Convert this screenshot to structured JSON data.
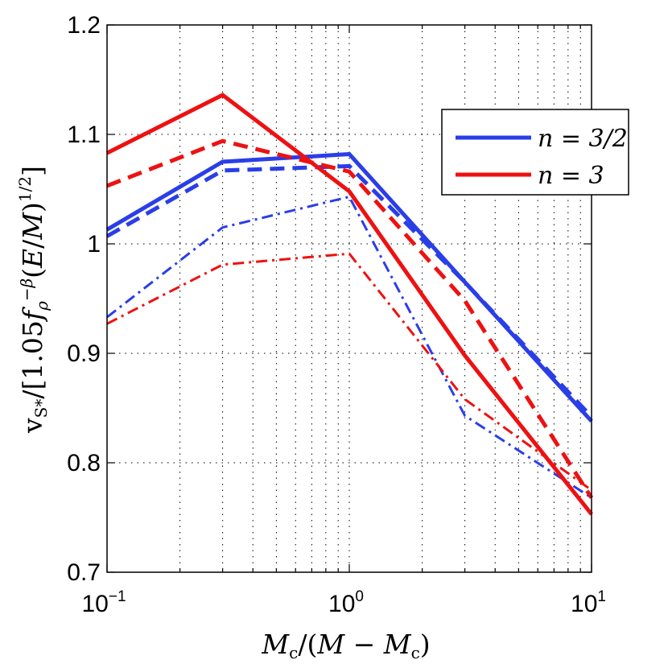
{
  "chart_data": {
    "type": "line",
    "xscale": "log",
    "xlim": [
      0.1,
      10
    ],
    "ylim": [
      0.7,
      1.2
    ],
    "grid": true,
    "legend_position": "top-right",
    "xlabel": "M_c/(M − M_c)",
    "ylabel": "v_s*/[1.05 f_ρ^−β (E/M)^1/2]",
    "x_ticks": [
      {
        "value": 0.1,
        "base": "10",
        "exp": "−1"
      },
      {
        "value": 1,
        "base": "10",
        "exp": "0"
      },
      {
        "value": 10,
        "base": "10",
        "exp": "1"
      }
    ],
    "y_ticks": [
      {
        "value": 0.7,
        "label": "0.7"
      },
      {
        "value": 0.8,
        "label": "0.8"
      },
      {
        "value": 0.9,
        "label": "0.9"
      },
      {
        "value": 1.0,
        "label": "1"
      },
      {
        "value": 1.1,
        "label": "1.1"
      },
      {
        "value": 1.2,
        "label": "1.2"
      }
    ],
    "legend": [
      {
        "label": "n = 3/2",
        "color": "#2a3ee8"
      },
      {
        "label": "n = 3",
        "color": "#ee1111"
      }
    ],
    "series": [
      {
        "name": "n = 3/2 solid",
        "color": "#2a3ee8",
        "style": "solid",
        "x": [
          0.1,
          0.3,
          1,
          3,
          10
        ],
        "y": [
          1.013,
          1.075,
          1.082,
          0.965,
          0.838
        ]
      },
      {
        "name": "n = 3/2 dashed",
        "color": "#2a3ee8",
        "style": "dashed",
        "x": [
          0.1,
          0.3,
          1,
          3,
          10
        ],
        "y": [
          1.007,
          1.067,
          1.071,
          0.965,
          0.842
        ]
      },
      {
        "name": "n = 3/2 dash-dot",
        "color": "#2a3ee8",
        "style": "dashdot",
        "x": [
          0.1,
          0.3,
          1,
          3,
          10
        ],
        "y": [
          0.933,
          1.015,
          1.043,
          0.843,
          0.768
        ]
      },
      {
        "name": "n = 3 solid",
        "color": "#ee1111",
        "style": "solid",
        "x": [
          0.1,
          0.3,
          1,
          3,
          10
        ],
        "y": [
          1.083,
          1.136,
          1.048,
          0.898,
          0.753
        ]
      },
      {
        "name": "n = 3 dashed",
        "color": "#ee1111",
        "style": "dashed",
        "x": [
          0.1,
          0.3,
          1,
          3,
          10
        ],
        "y": [
          1.053,
          1.094,
          1.066,
          0.948,
          0.768
        ]
      },
      {
        "name": "n = 3 dash-dot",
        "color": "#ee1111",
        "style": "dashdot",
        "x": [
          0.1,
          0.3,
          1,
          3,
          10
        ],
        "y": [
          0.927,
          0.981,
          0.991,
          0.858,
          0.775
        ]
      }
    ]
  }
}
